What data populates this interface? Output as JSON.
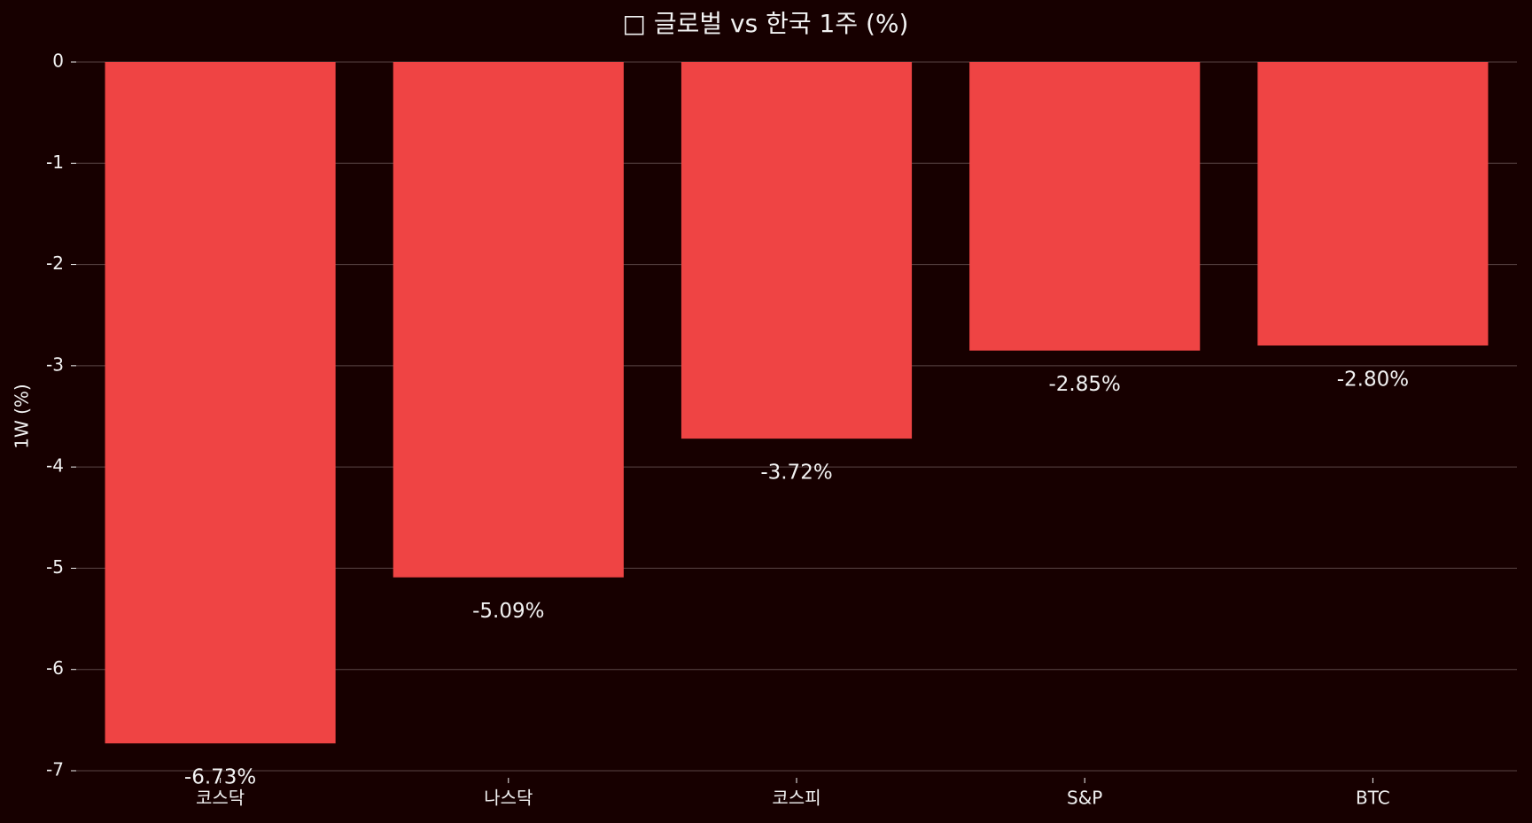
{
  "chart_data": {
    "type": "bar",
    "title": "□ 글로벌 vs 한국 1주 (%)",
    "y_label": "1W (%)",
    "categories": [
      "코스닥",
      "나스닥",
      "코스피",
      "S&P",
      "BTC"
    ],
    "values": [
      -6.73,
      -5.09,
      -3.72,
      -2.85,
      -2.8
    ],
    "value_labels": [
      "-6.73%",
      "-5.09%",
      "-3.72%",
      "-2.85%",
      "-2.80%"
    ],
    "color": "#ef4444",
    "ylim": [
      -7,
      0
    ],
    "yticks": [
      0,
      -1,
      -2,
      -3,
      -4,
      -5,
      -6,
      -7
    ],
    "grid": true
  }
}
